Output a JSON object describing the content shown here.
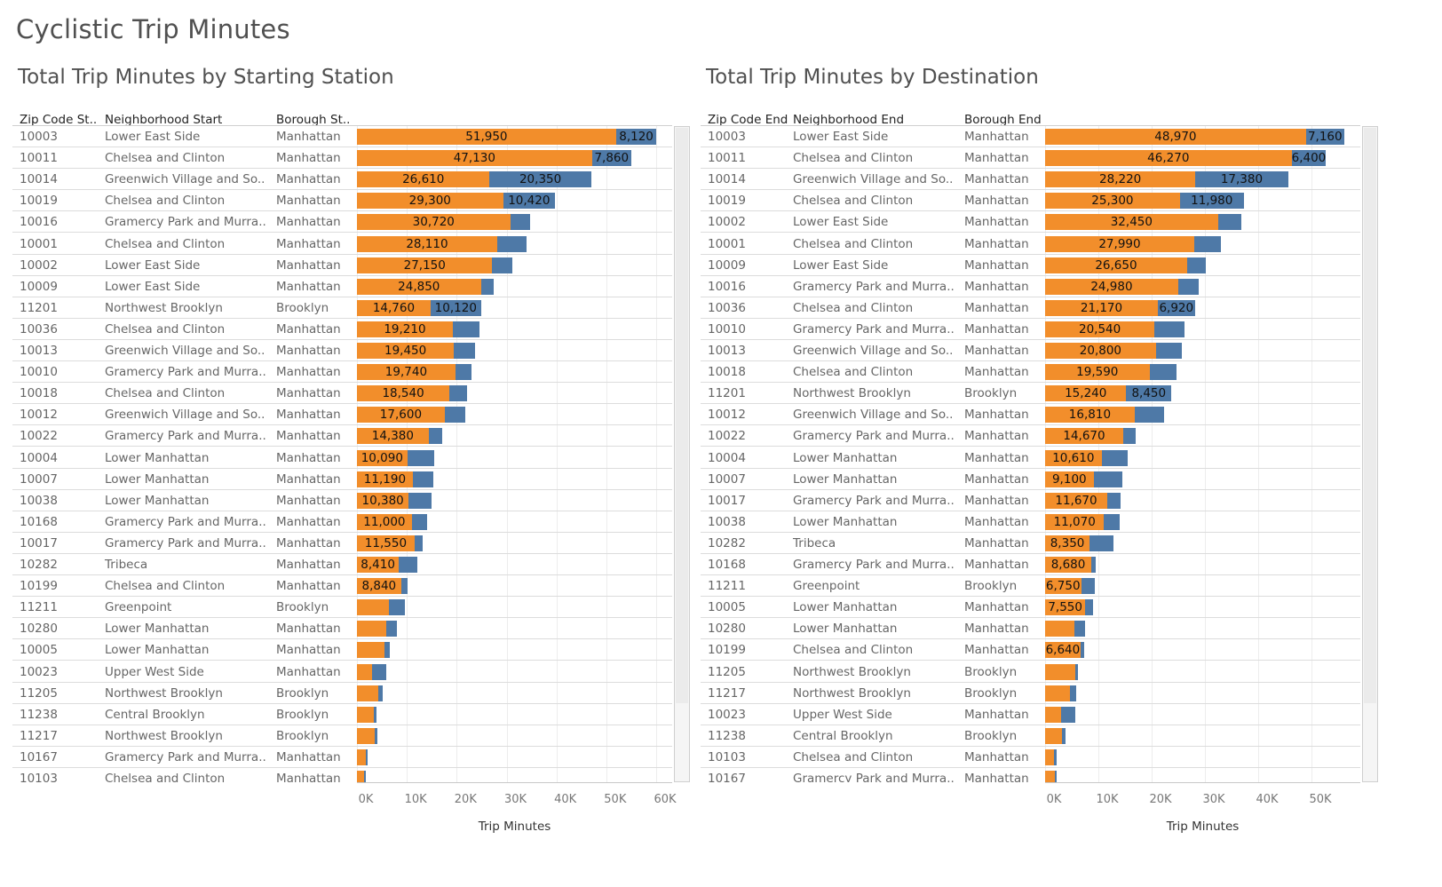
{
  "dashboard_title": "Cyclistic Trip Minutes",
  "colors": {
    "orange": "#f28e2b",
    "blue": "#4e79a7"
  },
  "chart_data": [
    {
      "type": "bar",
      "orientation": "horizontal",
      "stacked": true,
      "title": "Total Trip Minutes by Starting Station",
      "columns": [
        "Zip Code St..",
        "Neighborhood Start",
        "Borough St.."
      ],
      "xlabel": "Trip Minutes",
      "xlim": [
        0,
        63000
      ],
      "x_ticks": [
        "0K",
        "10K",
        "20K",
        "30K",
        "40K",
        "50K",
        "60K"
      ],
      "series": [
        {
          "color": "#f28e2b",
          "values": [
            51950,
            47130,
            26610,
            29300,
            30720,
            28110,
            27150,
            24850,
            14760,
            19210,
            19450,
            19740,
            18540,
            17600,
            14380,
            10090,
            11190,
            10380,
            11000,
            11550,
            8410,
            8840,
            6400,
            5900,
            5600,
            3100,
            4200,
            3400,
            3600,
            1800,
            1500
          ]
        },
        {
          "color": "#4e79a7",
          "values": [
            8120,
            7860,
            20350,
            10420,
            4000,
            5900,
            4000,
            2500,
            10120,
            5400,
            4200,
            3300,
            3600,
            4200,
            2800,
            5400,
            4200,
            4600,
            3000,
            1600,
            3700,
            1300,
            3300,
            2200,
            900,
            2800,
            900,
            500,
            500,
            400,
            300
          ]
        }
      ],
      "labels_orange": [
        "51,950",
        "47,130",
        "26,610",
        "29,300",
        "30,720",
        "28,110",
        "27,150",
        "24,850",
        "14,760",
        "19,210",
        "19,450",
        "19,740",
        "18,540",
        "17,600",
        "14,380",
        "10,090",
        "11,190",
        "10,380",
        "11,000",
        "11,550",
        "8,410",
        "8,840",
        "",
        "",
        "",
        "",
        "",
        "",
        "",
        "",
        ""
      ],
      "labels_blue": [
        "8,120",
        "7,860",
        "20,350",
        "10,420",
        "",
        "",
        "",
        "",
        "10,120",
        "",
        "",
        "",
        "",
        "",
        "",
        "",
        "",
        "",
        "",
        "",
        "",
        "",
        "",
        "",
        "",
        "",
        "",
        "",
        "",
        "",
        ""
      ],
      "rows": [
        [
          "10003",
          "Lower East Side",
          "Manhattan"
        ],
        [
          "10011",
          "Chelsea and Clinton",
          "Manhattan"
        ],
        [
          "10014",
          "Greenwich Village and So..",
          "Manhattan"
        ],
        [
          "10019",
          "Chelsea and Clinton",
          "Manhattan"
        ],
        [
          "10016",
          "Gramercy Park and Murra..",
          "Manhattan"
        ],
        [
          "10001",
          "Chelsea and Clinton",
          "Manhattan"
        ],
        [
          "10002",
          "Lower East Side",
          "Manhattan"
        ],
        [
          "10009",
          "Lower East Side",
          "Manhattan"
        ],
        [
          "11201",
          "Northwest Brooklyn",
          "Brooklyn"
        ],
        [
          "10036",
          "Chelsea and Clinton",
          "Manhattan"
        ],
        [
          "10013",
          "Greenwich Village and So..",
          "Manhattan"
        ],
        [
          "10010",
          "Gramercy Park and Murra..",
          "Manhattan"
        ],
        [
          "10018",
          "Chelsea and Clinton",
          "Manhattan"
        ],
        [
          "10012",
          "Greenwich Village and So..",
          "Manhattan"
        ],
        [
          "10022",
          "Gramercy Park and Murra..",
          "Manhattan"
        ],
        [
          "10004",
          "Lower Manhattan",
          "Manhattan"
        ],
        [
          "10007",
          "Lower Manhattan",
          "Manhattan"
        ],
        [
          "10038",
          "Lower Manhattan",
          "Manhattan"
        ],
        [
          "10168",
          "Gramercy Park and Murra..",
          "Manhattan"
        ],
        [
          "10017",
          "Gramercy Park and Murra..",
          "Manhattan"
        ],
        [
          "10282",
          "Tribeca",
          "Manhattan"
        ],
        [
          "10199",
          "Chelsea and Clinton",
          "Manhattan"
        ],
        [
          "11211",
          "Greenpoint",
          "Brooklyn"
        ],
        [
          "10280",
          "Lower Manhattan",
          "Manhattan"
        ],
        [
          "10005",
          "Lower Manhattan",
          "Manhattan"
        ],
        [
          "10023",
          "Upper West Side",
          "Manhattan"
        ],
        [
          "11205",
          "Northwest Brooklyn",
          "Brooklyn"
        ],
        [
          "11238",
          "Central Brooklyn",
          "Brooklyn"
        ],
        [
          "11217",
          "Northwest Brooklyn",
          "Brooklyn"
        ],
        [
          "10167",
          "Gramercy Park and Murra..",
          "Manhattan"
        ],
        [
          "10103",
          "Chelsea and Clinton",
          "Manhattan"
        ]
      ]
    },
    {
      "type": "bar",
      "orientation": "horizontal",
      "stacked": true,
      "title": "Total Trip Minutes by Destination",
      "columns": [
        "Zip Code End",
        "Neighborhood End",
        "Borough End"
      ],
      "xlabel": "Trip Minutes",
      "xlim": [
        0,
        58000
      ],
      "x_ticks": [
        "0K",
        "10K",
        "20K",
        "30K",
        "40K",
        "50K"
      ],
      "series": [
        {
          "color": "#f28e2b",
          "values": [
            48970,
            46270,
            28220,
            25300,
            32450,
            27990,
            26650,
            24980,
            21170,
            20540,
            20800,
            19590,
            15240,
            16810,
            14670,
            10610,
            9100,
            11670,
            11070,
            8350,
            8680,
            6750,
            7550,
            5500,
            6640,
            5600,
            4700,
            3000,
            3200,
            1600,
            1800
          ]
        },
        {
          "color": "#4e79a7",
          "values": [
            7160,
            6400,
            17380,
            11980,
            4400,
            5000,
            3600,
            3800,
            6920,
            5600,
            4800,
            5000,
            8450,
            5600,
            2300,
            4900,
            5400,
            2500,
            3000,
            4500,
            900,
            2500,
            1500,
            2000,
            700,
            600,
            1200,
            2600,
            600,
            600,
            400
          ]
        }
      ],
      "labels_orange": [
        "48,970",
        "46,270",
        "28,220",
        "25,300",
        "32,450",
        "27,990",
        "26,650",
        "24,980",
        "21,170",
        "20,540",
        "20,800",
        "19,590",
        "15,240",
        "16,810",
        "14,670",
        "10,610",
        "9,100",
        "11,670",
        "11,070",
        "8,350",
        "8,680",
        "6,750",
        "7,550",
        "",
        "6,640",
        "",
        "",
        "",
        "",
        "",
        ""
      ],
      "labels_blue": [
        "7,160",
        "6,400",
        "17,380",
        "11,980",
        "",
        "",
        "",
        "",
        "6,920",
        "",
        "",
        "",
        "8,450",
        "",
        "",
        "",
        "",
        "",
        "",
        "",
        "",
        "",
        "",
        "",
        "",
        "",
        "",
        "",
        "",
        "",
        ""
      ],
      "rows": [
        [
          "10003",
          "Lower East Side",
          "Manhattan"
        ],
        [
          "10011",
          "Chelsea and Clinton",
          "Manhattan"
        ],
        [
          "10014",
          "Greenwich Village and So..",
          "Manhattan"
        ],
        [
          "10019",
          "Chelsea and Clinton",
          "Manhattan"
        ],
        [
          "10002",
          "Lower East Side",
          "Manhattan"
        ],
        [
          "10001",
          "Chelsea and Clinton",
          "Manhattan"
        ],
        [
          "10009",
          "Lower East Side",
          "Manhattan"
        ],
        [
          "10016",
          "Gramercy Park and Murra..",
          "Manhattan"
        ],
        [
          "10036",
          "Chelsea and Clinton",
          "Manhattan"
        ],
        [
          "10010",
          "Gramercy Park and Murra..",
          "Manhattan"
        ],
        [
          "10013",
          "Greenwich Village and So..",
          "Manhattan"
        ],
        [
          "10018",
          "Chelsea and Clinton",
          "Manhattan"
        ],
        [
          "11201",
          "Northwest Brooklyn",
          "Brooklyn"
        ],
        [
          "10012",
          "Greenwich Village and So..",
          "Manhattan"
        ],
        [
          "10022",
          "Gramercy Park and Murra..",
          "Manhattan"
        ],
        [
          "10004",
          "Lower Manhattan",
          "Manhattan"
        ],
        [
          "10007",
          "Lower Manhattan",
          "Manhattan"
        ],
        [
          "10017",
          "Gramercy Park and Murra..",
          "Manhattan"
        ],
        [
          "10038",
          "Lower Manhattan",
          "Manhattan"
        ],
        [
          "10282",
          "Tribeca",
          "Manhattan"
        ],
        [
          "10168",
          "Gramercy Park and Murra..",
          "Manhattan"
        ],
        [
          "11211",
          "Greenpoint",
          "Brooklyn"
        ],
        [
          "10005",
          "Lower Manhattan",
          "Manhattan"
        ],
        [
          "10280",
          "Lower Manhattan",
          "Manhattan"
        ],
        [
          "10199",
          "Chelsea and Clinton",
          "Manhattan"
        ],
        [
          "11205",
          "Northwest Brooklyn",
          "Brooklyn"
        ],
        [
          "11217",
          "Northwest Brooklyn",
          "Brooklyn"
        ],
        [
          "10023",
          "Upper West Side",
          "Manhattan"
        ],
        [
          "11238",
          "Central Brooklyn",
          "Brooklyn"
        ],
        [
          "10103",
          "Chelsea and Clinton",
          "Manhattan"
        ],
        [
          "10167",
          "Gramercy Park and Murra..",
          "Manhattan"
        ]
      ]
    }
  ]
}
